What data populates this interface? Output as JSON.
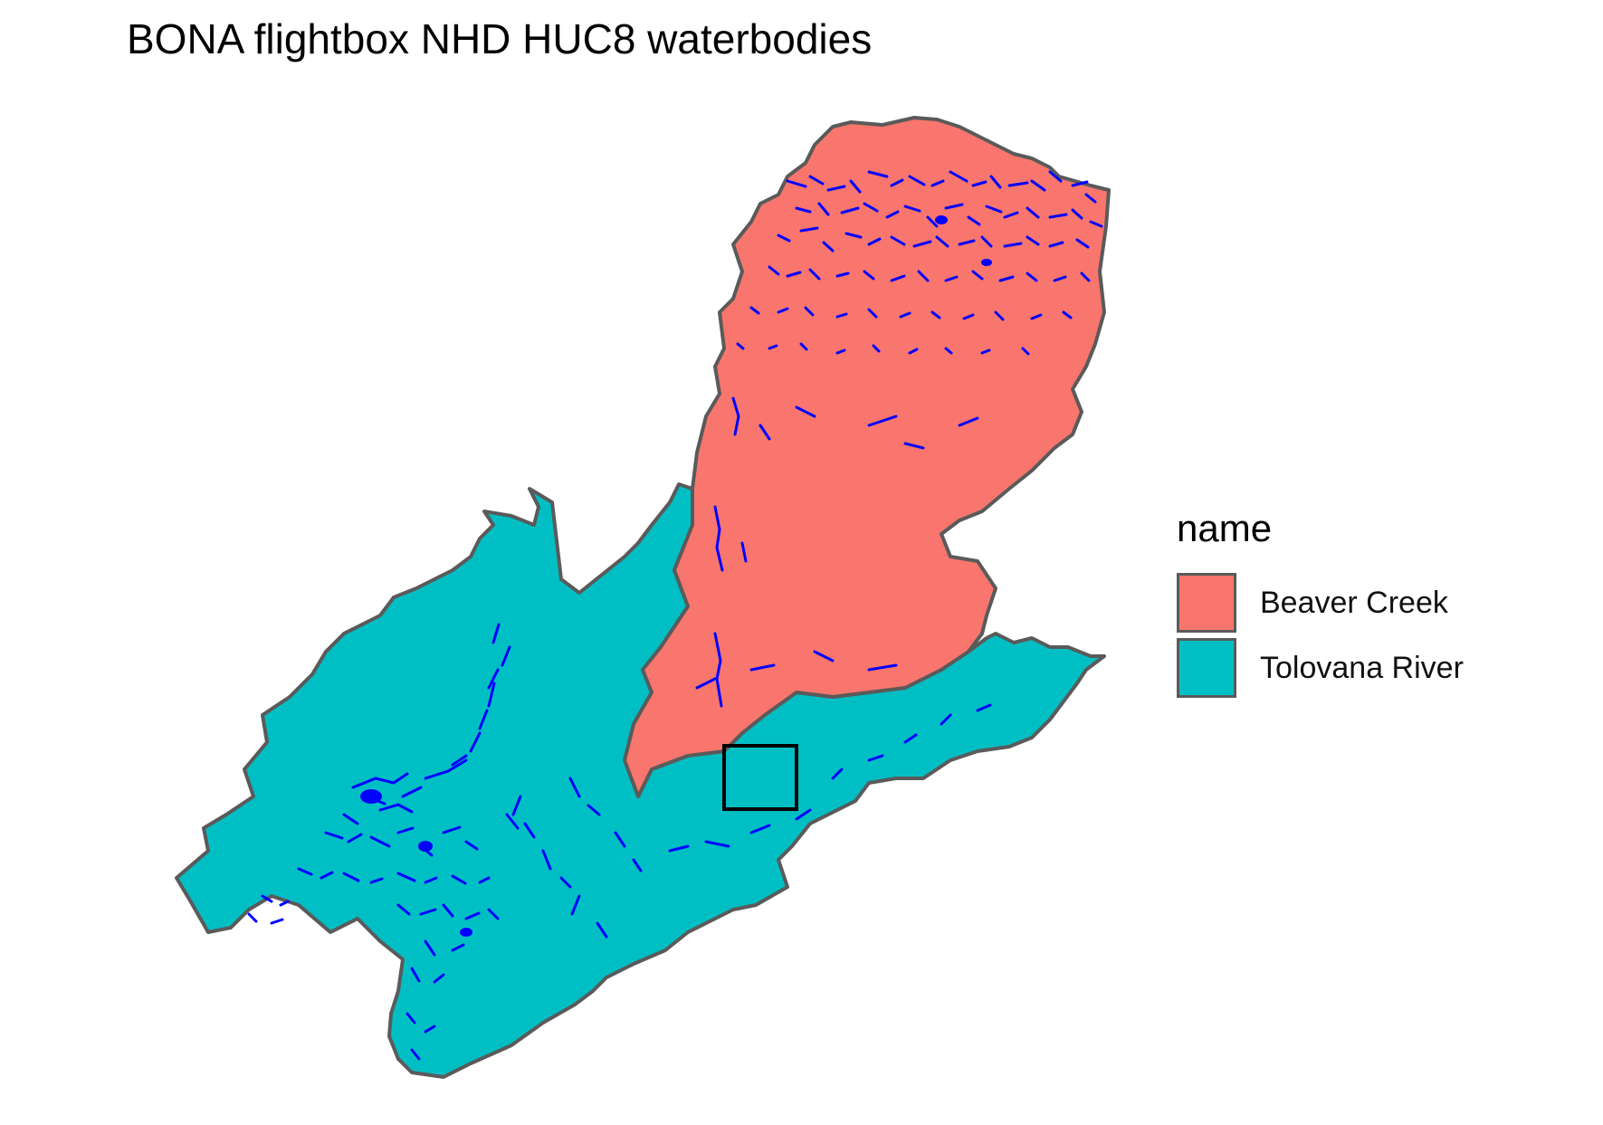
{
  "title": "BONA flightbox NHD HUC8 waterbodies",
  "legend": {
    "title": "name",
    "items": [
      {
        "label": "Beaver Creek",
        "color": "#F8766D"
      },
      {
        "label": "Tolovana River",
        "color": "#00BFC4"
      }
    ]
  },
  "colors": {
    "boundary": "#5a5a5a",
    "waterbody": "#0000FF",
    "flightbox": "#000000"
  }
}
